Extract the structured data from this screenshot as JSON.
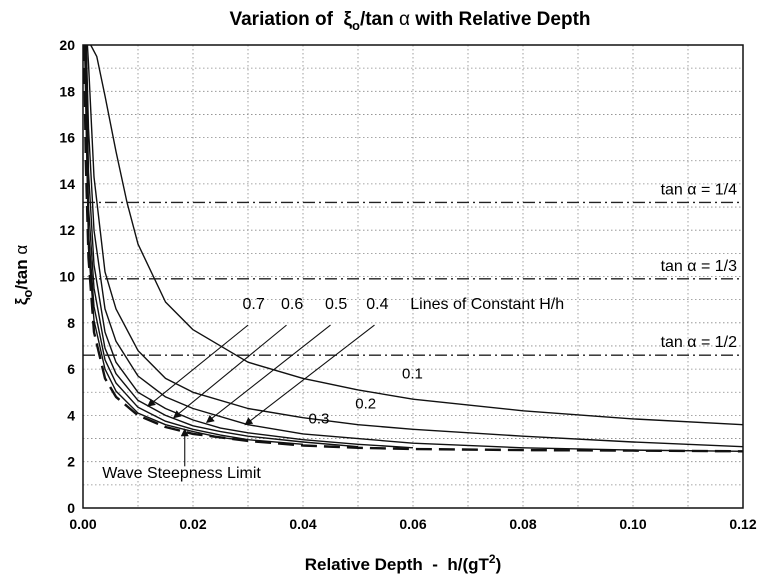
{
  "chart_data": {
    "type": "line",
    "title": {
      "prefix": "Variation of  ",
      "xi": "ξ",
      "sub": "o",
      "rest": "/tan ",
      "alpha": "α",
      "suffix": " with Relative Depth"
    },
    "xlabel": {
      "main": "Relative Depth  -  h/(gT",
      "sup": "2",
      "close": ")"
    },
    "ylabel": {
      "xi": "ξ",
      "sub": "o",
      "rest": "/tan ",
      "alpha": "α"
    },
    "xlim": [
      0,
      0.12
    ],
    "ylim": [
      0,
      20
    ],
    "xticks": [
      "0.00",
      "0.02",
      "0.04",
      "0.06",
      "0.08",
      "0.10",
      "0.12"
    ],
    "yticks": [
      "0",
      "2",
      "4",
      "6",
      "8",
      "10",
      "12",
      "14",
      "16",
      "18",
      "20"
    ],
    "grid": true,
    "horizontal_lines": [
      {
        "label": "tan α = 1/4",
        "y": 13.2
      },
      {
        "label": "tan α = 1/3",
        "y": 9.9
      },
      {
        "label": "tan α = 1/2",
        "y": 6.6
      }
    ],
    "series": [
      {
        "name": "0.1",
        "x": [
          0.0014,
          0.0025,
          0.004,
          0.006,
          0.008,
          0.01,
          0.015,
          0.02,
          0.03,
          0.04,
          0.05,
          0.06,
          0.08,
          0.1,
          0.12
        ],
        "y": [
          20,
          19.5,
          17.8,
          15.4,
          13.2,
          11.4,
          8.9,
          7.7,
          6.3,
          5.6,
          5.1,
          4.7,
          4.2,
          3.85,
          3.6
        ]
      },
      {
        "name": "0.2",
        "x": [
          0.0008,
          0.001,
          0.002,
          0.004,
          0.006,
          0.01,
          0.015,
          0.02,
          0.03,
          0.04,
          0.05,
          0.06,
          0.08,
          0.1,
          0.12
        ],
        "y": [
          20,
          19.2,
          14.3,
          10.2,
          8.6,
          6.8,
          5.6,
          5.0,
          4.3,
          3.9,
          3.6,
          3.4,
          3.1,
          2.85,
          2.65
        ]
      },
      {
        "name": "0.3",
        "x": [
          0.0006,
          0.001,
          0.002,
          0.004,
          0.006,
          0.01,
          0.015,
          0.02,
          0.03,
          0.04,
          0.05,
          0.06,
          0.08,
          0.1,
          0.12
        ],
        "y": [
          20,
          16.4,
          12.0,
          8.6,
          7.2,
          5.7,
          4.8,
          4.3,
          3.6,
          3.2,
          3.0,
          2.8,
          2.6,
          2.5,
          2.45
        ]
      },
      {
        "name": "0.4",
        "x": [
          0.0005,
          0.001,
          0.002,
          0.004,
          0.006,
          0.01,
          0.015,
          0.02,
          0.025,
          0.03,
          0.04,
          0.05,
          0.06
        ],
        "y": [
          20,
          14.5,
          10.5,
          7.6,
          6.3,
          5.0,
          4.3,
          3.8,
          3.45,
          3.25,
          2.95,
          2.75,
          2.6
        ]
      },
      {
        "name": "0.5",
        "x": [
          0.0004,
          0.001,
          0.002,
          0.004,
          0.006,
          0.01,
          0.015,
          0.02,
          0.025,
          0.03,
          0.04,
          0.05
        ],
        "y": [
          20,
          13.0,
          9.5,
          6.9,
          5.8,
          4.65,
          4.0,
          3.55,
          3.3,
          3.1,
          2.85,
          2.65
        ]
      },
      {
        "name": "0.6",
        "x": [
          0.0003,
          0.001,
          0.002,
          0.004,
          0.006,
          0.01,
          0.015,
          0.02,
          0.025,
          0.03,
          0.04
        ],
        "y": [
          20,
          11.9,
          8.7,
          6.4,
          5.4,
          4.35,
          3.75,
          3.4,
          3.15,
          2.95,
          2.75
        ]
      },
      {
        "name": "0.7",
        "x": [
          0.0003,
          0.001,
          0.002,
          0.004,
          0.006,
          0.01,
          0.015,
          0.02,
          0.025,
          0.03
        ],
        "y": [
          20,
          11.2,
          8.1,
          6.0,
          5.05,
          4.1,
          3.6,
          3.3,
          3.05,
          2.9
        ]
      },
      {
        "name": "Wave Steepness Limit",
        "dashed": true,
        "x": [
          0.0002,
          0.0005,
          0.001,
          0.002,
          0.004,
          0.006,
          0.01,
          0.015,
          0.02,
          0.03,
          0.04,
          0.05,
          0.06,
          0.08,
          0.1,
          0.12
        ],
        "y": [
          20,
          15.0,
          10.8,
          7.6,
          5.6,
          4.8,
          4.0,
          3.5,
          3.2,
          2.9,
          2.7,
          2.6,
          2.55,
          2.5,
          2.48,
          2.45
        ]
      }
    ],
    "curve_labels": [
      {
        "text": "0.1",
        "x": 0.058,
        "y": 5.6
      },
      {
        "text": "0.2",
        "x": 0.0495,
        "y": 4.3
      },
      {
        "text": "0.3",
        "x": 0.041,
        "y": 3.65
      }
    ],
    "ratio_labels": [
      {
        "text": "0.7",
        "x": 0.029,
        "y": 8.6
      },
      {
        "text": "0.6",
        "x": 0.036,
        "y": 8.6
      },
      {
        "text": "0.5",
        "x": 0.044,
        "y": 8.6
      },
      {
        "text": "0.4",
        "x": 0.0515,
        "y": 8.6
      }
    ],
    "annotations": {
      "constant": {
        "text": "Lines of Constant H/h",
        "x": 0.0595,
        "y": 8.6
      },
      "steepness": {
        "text": "Wave Steepness Limit",
        "x": 0.0035,
        "y": 1.3
      }
    },
    "arrows": [
      {
        "from": [
          0.03,
          7.9
        ],
        "to": [
          0.0118,
          4.4
        ]
      },
      {
        "from": [
          0.037,
          7.9
        ],
        "to": [
          0.0165,
          3.9
        ]
      },
      {
        "from": [
          0.045,
          7.9
        ],
        "to": [
          0.0225,
          3.7
        ]
      },
      {
        "from": [
          0.053,
          7.9
        ],
        "to": [
          0.0295,
          3.6
        ]
      },
      {
        "from": [
          0.0185,
          1.8
        ],
        "to": [
          0.0185,
          3.4
        ]
      }
    ],
    "colors": {
      "line": "#111111",
      "grid": "#888888",
      "refline": "#222222"
    }
  }
}
